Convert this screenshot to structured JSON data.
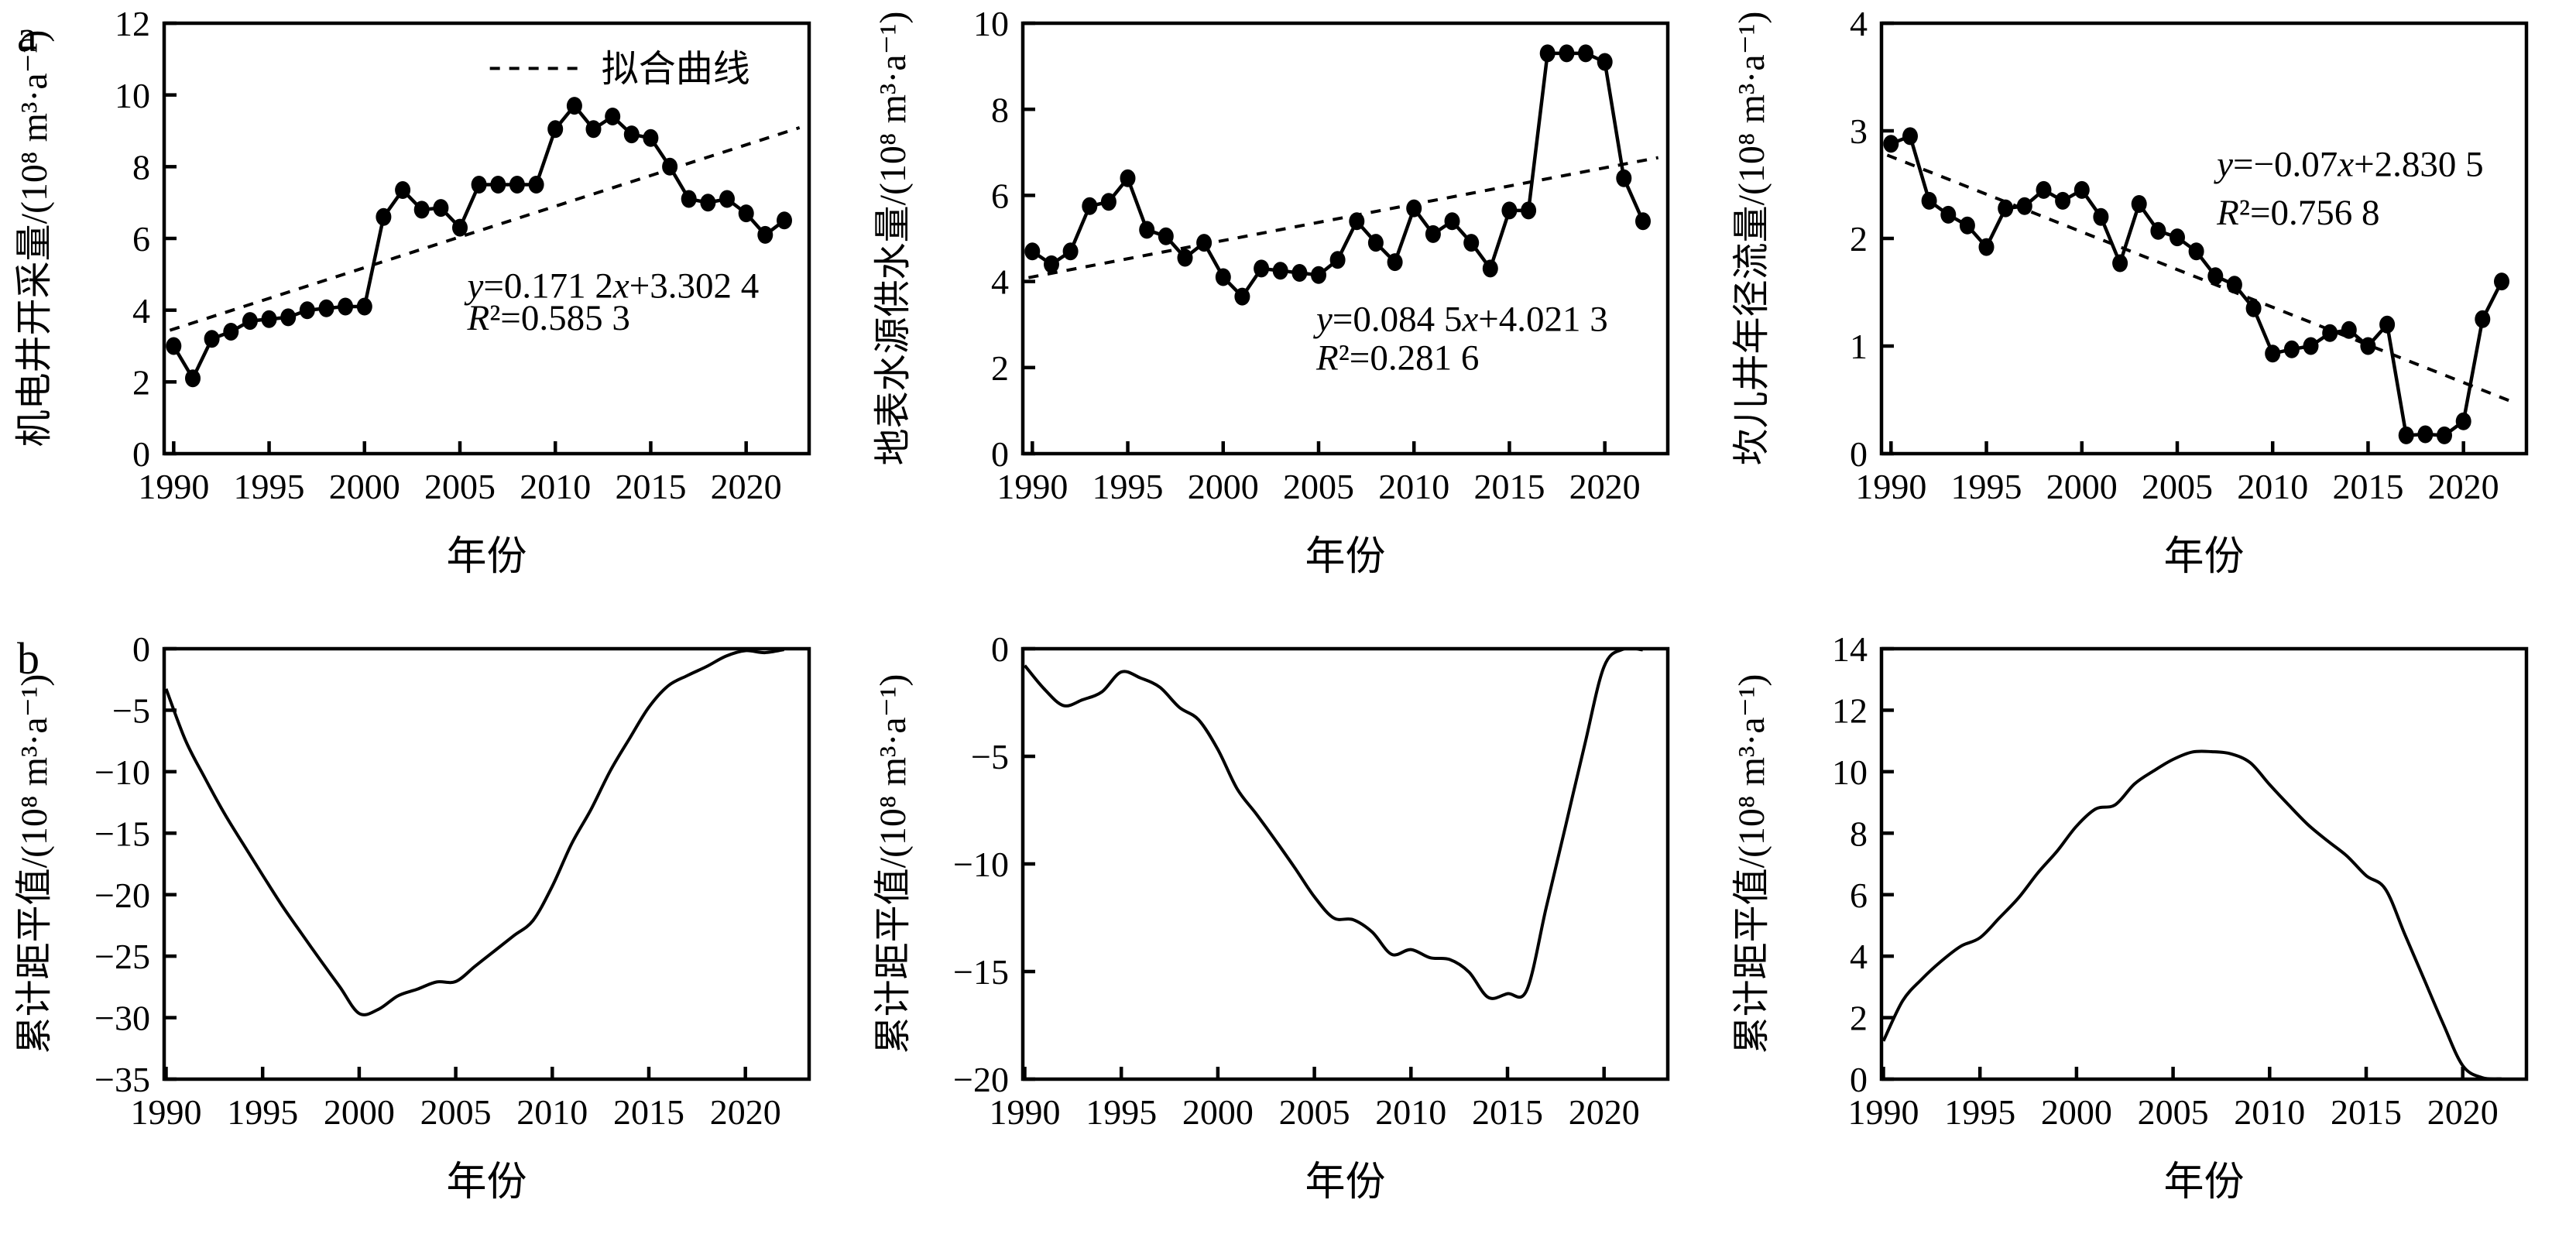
{
  "figure": {
    "row_labels": {
      "a": "a",
      "b": "b"
    },
    "background": "#ffffff",
    "ink": "#000000"
  },
  "legend": {
    "label": "拟合曲线"
  },
  "chart_data": [
    {
      "id": "motor-well-extraction",
      "type": "line",
      "row": "a",
      "ylabel": "机电井开采量/(10⁸ m³·a⁻¹)",
      "xlabel": "年份",
      "ylim": [
        0,
        12
      ],
      "ytick_step": 2,
      "xlim": [
        1989.5,
        2023.3
      ],
      "xticks": [
        1990,
        1995,
        2000,
        2005,
        2010,
        2015,
        2020
      ],
      "markers": true,
      "x": [
        1990,
        1991,
        1992,
        1993,
        1994,
        1995,
        1996,
        1997,
        1998,
        1999,
        2000,
        2001,
        2002,
        2003,
        2004,
        2005,
        2006,
        2007,
        2008,
        2009,
        2010,
        2011,
        2012,
        2013,
        2014,
        2015,
        2016,
        2017,
        2018,
        2019,
        2020,
        2021,
        2022
      ],
      "y": [
        3.0,
        2.1,
        3.2,
        3.4,
        3.7,
        3.75,
        3.8,
        4.0,
        4.05,
        4.1,
        4.1,
        6.6,
        7.35,
        6.8,
        6.85,
        6.3,
        7.5,
        7.5,
        7.5,
        7.5,
        9.05,
        9.7,
        9.05,
        9.4,
        8.9,
        8.8,
        8.0,
        7.1,
        7.0,
        7.1,
        6.7,
        6.1,
        6.5
      ],
      "trend": {
        "slope": 0.1712,
        "intercept": 3.3024,
        "eq": "y=0.171 2x+3.302 4",
        "r2": "R²=0.585 3"
      },
      "legend": "拟合曲线"
    },
    {
      "id": "surface-water-supply",
      "type": "line",
      "row": "a",
      "ylabel": "地表水源供水量/(10⁸ m³·a⁻¹)",
      "xlabel": "年份",
      "ylim": [
        0,
        10
      ],
      "ytick_step": 2,
      "xlim": [
        1989.5,
        2023.3
      ],
      "xticks": [
        1990,
        1995,
        2000,
        2005,
        2010,
        2015,
        2020
      ],
      "markers": true,
      "x": [
        1990,
        1991,
        1992,
        1993,
        1994,
        1995,
        1996,
        1997,
        1998,
        1999,
        2000,
        2001,
        2002,
        2003,
        2004,
        2005,
        2006,
        2007,
        2008,
        2009,
        2010,
        2011,
        2012,
        2013,
        2014,
        2015,
        2016,
        2017,
        2018,
        2019,
        2020,
        2021,
        2022
      ],
      "y": [
        4.7,
        4.4,
        4.7,
        5.75,
        5.85,
        6.4,
        5.2,
        5.05,
        4.55,
        4.9,
        4.1,
        3.65,
        4.3,
        4.25,
        4.2,
        4.15,
        4.5,
        5.4,
        4.9,
        4.45,
        5.7,
        5.1,
        5.4,
        4.9,
        4.3,
        5.65,
        5.65,
        9.3,
        9.3,
        9.3,
        9.1,
        6.4,
        5.4
      ],
      "trend": {
        "slope": 0.0845,
        "intercept": 4.0213,
        "eq": "y=0.084 5x+4.021 3",
        "r2": "R²=0.281 6"
      }
    },
    {
      "id": "karez-annual-runoff",
      "type": "line",
      "row": "a",
      "ylabel": "坎儿井年径流量/(10⁸ m³·a⁻¹)",
      "xlabel": "年份",
      "ylim": [
        0,
        4
      ],
      "ytick_step": 1,
      "xlim": [
        1989.5,
        2023.3
      ],
      "xticks": [
        1990,
        1995,
        2000,
        2005,
        2010,
        2015,
        2020
      ],
      "markers": true,
      "x": [
        1990,
        1991,
        1992,
        1993,
        1994,
        1995,
        1996,
        1997,
        1998,
        1999,
        2000,
        2001,
        2002,
        2003,
        2004,
        2005,
        2006,
        2007,
        2008,
        2009,
        2010,
        2011,
        2012,
        2013,
        2014,
        2015,
        2016,
        2017,
        2018,
        2019,
        2020,
        2021,
        2022
      ],
      "y": [
        2.88,
        2.95,
        2.35,
        2.22,
        2.12,
        1.92,
        2.28,
        2.3,
        2.45,
        2.35,
        2.45,
        2.2,
        1.77,
        2.32,
        2.07,
        2.01,
        1.88,
        1.65,
        1.57,
        1.35,
        0.93,
        0.97,
        1.0,
        1.12,
        1.15,
        1.0,
        1.2,
        0.17,
        0.18,
        0.17,
        0.3,
        1.25,
        1.6
      ],
      "trend": {
        "slope": -0.07,
        "intercept": 2.8305,
        "eq": "y=−0.07x+2.830 5",
        "r2": "R²=0.756 8"
      }
    },
    {
      "id": "cumulative-anomaly-motor-well",
      "type": "smooth-line",
      "row": "b",
      "ylabel": "累计距平值/(10⁸ m³·a⁻¹)",
      "xlabel": "年份",
      "ylim": [
        -35,
        0
      ],
      "ytick_step": 5,
      "xlim": [
        1989.9,
        2023.3
      ],
      "xticks": [
        1990,
        1995,
        2000,
        2005,
        2010,
        2015,
        2020
      ],
      "markers": false,
      "x": [
        1990,
        1991,
        1992,
        1993,
        1994,
        1995,
        1996,
        1997,
        1998,
        1999,
        2000,
        2001,
        2002,
        2003,
        2004,
        2005,
        2006,
        2007,
        2008,
        2009,
        2010,
        2011,
        2012,
        2013,
        2014,
        2015,
        2016,
        2017,
        2018,
        2019,
        2020,
        2021,
        2022
      ],
      "y": [
        -3.26,
        -7.42,
        -10.48,
        -13.34,
        -15.9,
        -18.41,
        -20.87,
        -23.13,
        -25.34,
        -27.5,
        -29.66,
        -29.32,
        -28.23,
        -27.69,
        -27.1,
        -27.06,
        -25.82,
        -24.58,
        -23.34,
        -22.1,
        -19.31,
        -15.87,
        -13.08,
        -9.94,
        -7.3,
        -4.76,
        -3.02,
        -2.18,
        -1.44,
        -0.6,
        -0.16,
        -0.32,
        -0.07
      ]
    },
    {
      "id": "cumulative-anomaly-surface-water",
      "type": "smooth-line",
      "row": "b",
      "ylabel": "累计距平值/(10⁸ m³·a⁻¹)",
      "xlabel": "年份",
      "ylim": [
        -20,
        0
      ],
      "ytick_step": 5,
      "xlim": [
        1989.9,
        2023.3
      ],
      "xticks": [
        1990,
        1995,
        2000,
        2005,
        2010,
        2015,
        2020
      ],
      "markers": false,
      "x": [
        1990,
        1991,
        1992,
        1993,
        1994,
        1995,
        1996,
        1997,
        1998,
        1999,
        2000,
        2001,
        2002,
        2003,
        2004,
        2005,
        2006,
        2007,
        2008,
        2009,
        2010,
        2011,
        2012,
        2013,
        2014,
        2015,
        2016,
        2017,
        2018,
        2019,
        2020,
        2021,
        2022
      ],
      "y": [
        -0.78,
        -1.86,
        -2.64,
        -2.37,
        -2.0,
        -1.08,
        -1.36,
        -1.79,
        -2.72,
        -3.3,
        -4.68,
        -6.51,
        -7.69,
        -8.92,
        -10.2,
        -11.53,
        -12.51,
        -12.59,
        -13.17,
        -14.2,
        -13.98,
        -14.36,
        -14.44,
        -15.02,
        -16.2,
        -16.03,
        -15.86,
        -12.04,
        -8.27,
        -4.45,
        -0.83,
        -0.02,
        -0.05
      ]
    },
    {
      "id": "cumulative-anomaly-karez",
      "type": "smooth-line",
      "row": "b",
      "ylabel": "累计距平值/(10⁸ m³·a⁻¹)",
      "xlabel": "年份",
      "ylim": [
        0,
        14
      ],
      "ytick_step": 2,
      "xlim": [
        1989.9,
        2023.3
      ],
      "xticks": [
        1990,
        1995,
        2000,
        2005,
        2010,
        2015,
        2020
      ],
      "markers": false,
      "x": [
        1990,
        1991,
        1992,
        1993,
        1994,
        1995,
        1996,
        1997,
        1998,
        1999,
        2000,
        2001,
        2002,
        2003,
        2004,
        2005,
        2006,
        2007,
        2008,
        2009,
        2010,
        2011,
        2012,
        2013,
        2014,
        2015,
        2016,
        2017,
        2018,
        2019,
        2020,
        2021,
        2022
      ],
      "y": [
        1.24,
        2.55,
        3.26,
        3.84,
        4.32,
        4.6,
        5.24,
        5.9,
        6.71,
        7.42,
        8.23,
        8.79,
        8.92,
        9.6,
        10.03,
        10.4,
        10.64,
        10.65,
        10.58,
        10.29,
        9.58,
        8.91,
        8.27,
        7.75,
        7.26,
        6.62,
        6.18,
        4.71,
        3.25,
        1.78,
        0.44,
        0.05,
        0.01
      ]
    }
  ]
}
